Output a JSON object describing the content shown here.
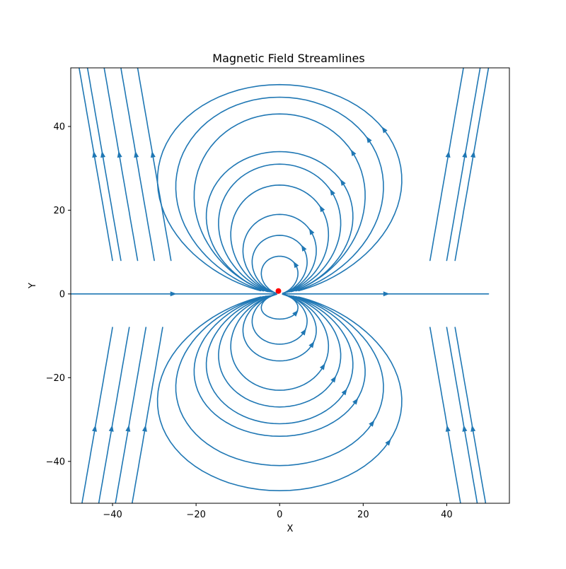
{
  "chart_data": {
    "type": "streamplot",
    "title": "Magnetic Field Streamlines",
    "xlabel": "X",
    "ylabel": "Y",
    "xlim": [
      -50,
      55
    ],
    "ylim": [
      -50,
      54
    ],
    "xticks": [
      -40,
      -20,
      0,
      20,
      40
    ],
    "yticks": [
      -40,
      -20,
      0,
      20,
      40
    ],
    "xtick_labels": [
      "−40",
      "−20",
      "0",
      "20",
      "40"
    ],
    "ytick_labels": [
      "−40",
      "−20",
      "0",
      "20",
      "40"
    ],
    "grid": false,
    "line_color": "#1f77b4",
    "source_marker": {
      "x": -0.3,
      "y": 0.7,
      "color": "#ff0000"
    },
    "field_model": "field-line equation: sin²θ / r = const in (x, y), dipole tilted slightly so lines open to the right near y = 0",
    "streamlines": [
      {
        "side": "upper",
        "x_extent": 6,
        "y_peak": 9
      },
      {
        "side": "upper",
        "x_extent": 9,
        "y_peak": 14
      },
      {
        "side": "upper",
        "x_extent": 12,
        "y_peak": 19
      },
      {
        "side": "upper",
        "x_extent": 16,
        "y_peak": 26
      },
      {
        "side": "upper",
        "x_extent": 20,
        "y_peak": 31
      },
      {
        "side": "upper",
        "x_extent": 24,
        "y_peak": 34
      },
      {
        "side": "upper",
        "x_extent": 28,
        "y_peak": 43
      },
      {
        "side": "upper",
        "x_extent": 34,
        "y_peak": 47
      },
      {
        "side": "upper",
        "x_extent": 40,
        "y_peak": 50
      },
      {
        "side": "lower",
        "x_extent": 6,
        "y_peak": -6
      },
      {
        "side": "lower",
        "x_extent": 9,
        "y_peak": -12
      },
      {
        "side": "lower",
        "x_extent": 12,
        "y_peak": -16
      },
      {
        "side": "lower",
        "x_extent": 16,
        "y_peak": -23
      },
      {
        "side": "lower",
        "x_extent": 20,
        "y_peak": -27
      },
      {
        "side": "lower",
        "x_extent": 24,
        "y_peak": -31
      },
      {
        "side": "lower",
        "x_extent": 28,
        "y_peak": -34
      },
      {
        "side": "lower",
        "x_extent": 34,
        "y_peak": -41
      },
      {
        "side": "lower",
        "x_extent": 40,
        "y_peak": -47
      }
    ],
    "open_lines": [
      {
        "side": "upper",
        "x_at_top": -48
      },
      {
        "side": "upper",
        "x_at_top": -46
      },
      {
        "side": "upper",
        "x_at_top": -42
      },
      {
        "side": "upper",
        "x_at_top": -38
      },
      {
        "side": "upper",
        "x_at_top": -34
      },
      {
        "side": "upper",
        "x_at_top": 44
      },
      {
        "side": "upper",
        "x_at_top": 48
      },
      {
        "side": "upper",
        "x_at_top": 50
      },
      {
        "side": "lower",
        "x_at_bottom": -48
      },
      {
        "side": "lower",
        "x_at_bottom": -44
      },
      {
        "side": "lower",
        "x_at_bottom": -40
      },
      {
        "side": "lower",
        "x_at_bottom": -36
      },
      {
        "side": "lower",
        "x_at_bottom": 44
      },
      {
        "side": "lower",
        "x_at_bottom": 48
      },
      {
        "side": "lower",
        "x_at_bottom": 50
      }
    ],
    "axis_lines": [
      {
        "from_x": -50,
        "to_x": -1,
        "y": 0
      },
      {
        "from_x": 1,
        "to_x": 50,
        "y": 0
      }
    ]
  }
}
